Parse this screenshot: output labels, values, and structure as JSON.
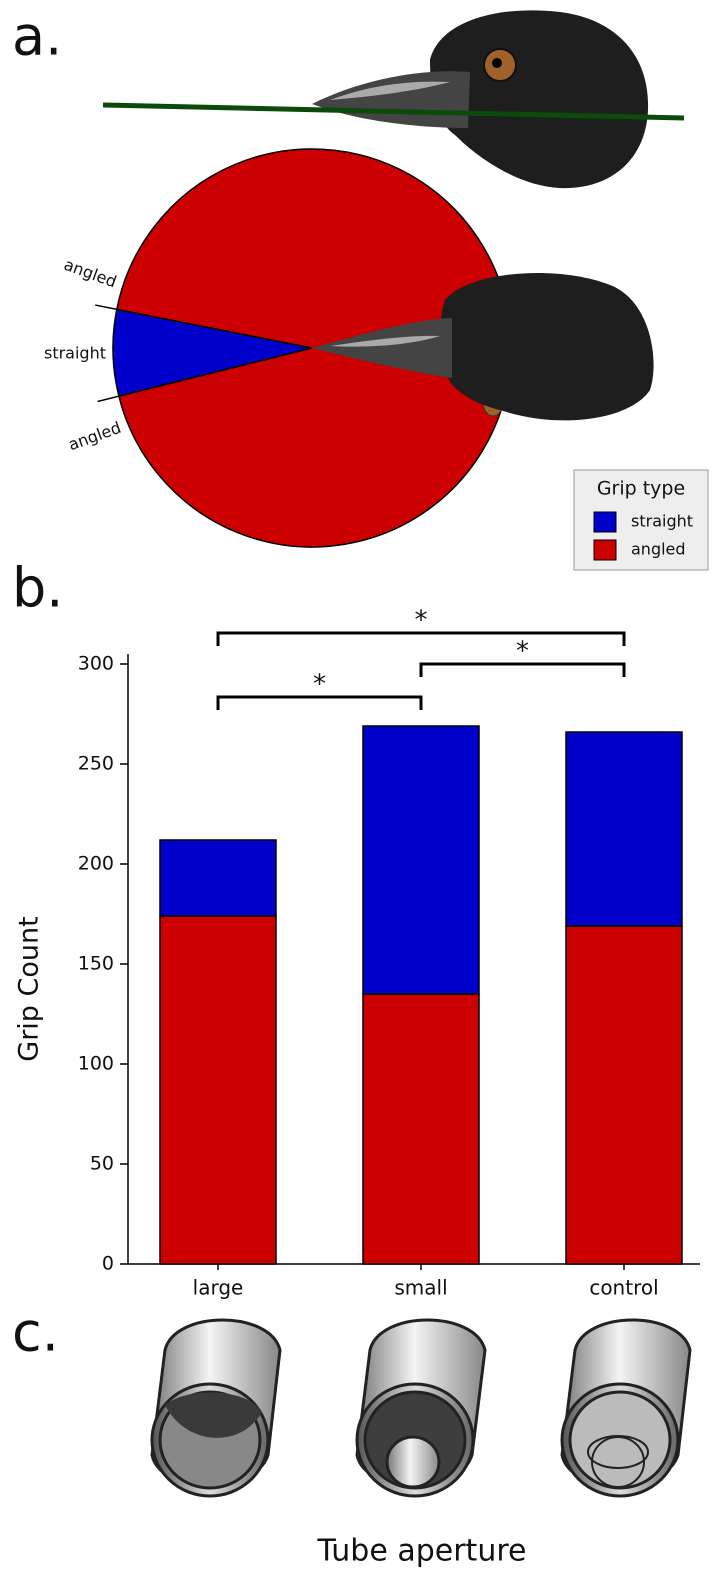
{
  "panel_labels": [
    "a.",
    "b.",
    "c."
  ],
  "chart_data": [
    {
      "type": "pie",
      "categories": [
        "straight",
        "angled"
      ],
      "values": [
        7,
        93
      ],
      "colors": [
        "#0000cc",
        "#cc0000"
      ],
      "legend_title": "Grip type",
      "legend": "lower right",
      "annotations": [
        "angled",
        "straight",
        "angled"
      ]
    },
    {
      "type": "bar",
      "stacked": true,
      "categories": [
        "large",
        "small",
        "control"
      ],
      "series": [
        {
          "name": "angled",
          "color": "#cc0000",
          "values": [
            174,
            135,
            169
          ]
        },
        {
          "name": "straight",
          "color": "#0000cc",
          "values": [
            38,
            134,
            97
          ]
        }
      ],
      "ylim": [
        0,
        305
      ],
      "yticks": [
        0,
        50,
        100,
        150,
        200,
        250,
        300
      ],
      "ylabel": "Grip Count",
      "xlabel": "Tube aperture",
      "annotations": [
        "*",
        "*",
        "*"
      ]
    }
  ]
}
